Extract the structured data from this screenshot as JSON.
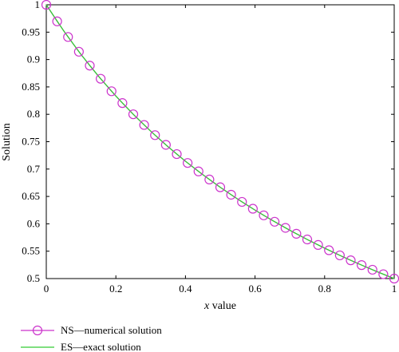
{
  "chart_data": {
    "type": "line",
    "title": "",
    "xlabel_var": "x",
    "xlabel_rest": " value",
    "ylabel": "Solution",
    "xlim": [
      0,
      1
    ],
    "ylim": [
      0.5,
      1
    ],
    "x_ticks": [
      0,
      0.2,
      0.4,
      0.6,
      0.8,
      1
    ],
    "x_tick_labels": [
      "0",
      "0.2",
      "0.4",
      "0.6",
      "0.8",
      "1"
    ],
    "y_ticks": [
      0.5,
      0.55,
      0.6,
      0.65,
      0.7,
      0.75,
      0.8,
      0.85,
      0.9,
      0.95,
      1
    ],
    "y_tick_labels": [
      "0.5",
      "0.55",
      "0.6",
      "0.65",
      "0.7",
      "0.75",
      "0.8",
      "0.85",
      "0.9",
      "0.95",
      "1"
    ],
    "grid": false,
    "legend_position": "bottom-left, below plot",
    "series": [
      {
        "name": "NS—numerical solution",
        "color": "#cc33cc",
        "style": "circle-markers",
        "x": [
          0,
          0.03125,
          0.0625,
          0.09375,
          0.125,
          0.15625,
          0.1875,
          0.21875,
          0.25,
          0.28125,
          0.3125,
          0.34375,
          0.375,
          0.40625,
          0.4375,
          0.46875,
          0.5,
          0.53125,
          0.5625,
          0.59375,
          0.625,
          0.65625,
          0.6875,
          0.71875,
          0.75,
          0.78125,
          0.8125,
          0.84375,
          0.875,
          0.90625,
          0.9375,
          0.96875,
          1
        ],
        "y": [
          1.0,
          0.9697,
          0.9412,
          0.9143,
          0.8889,
          0.8649,
          0.8421,
          0.8205,
          0.8,
          0.7805,
          0.7619,
          0.7442,
          0.7273,
          0.7111,
          0.6957,
          0.6809,
          0.6667,
          0.6531,
          0.64,
          0.6275,
          0.6154,
          0.6038,
          0.5926,
          0.5818,
          0.5714,
          0.5614,
          0.5517,
          0.5424,
          0.5333,
          0.5246,
          0.5161,
          0.5079,
          0.5
        ]
      },
      {
        "name": "ES—exact solution",
        "color": "#33cc33",
        "style": "line",
        "x": [
          0,
          0.05,
          0.1,
          0.15,
          0.2,
          0.25,
          0.3,
          0.35,
          0.4,
          0.45,
          0.5,
          0.55,
          0.6,
          0.65,
          0.7,
          0.75,
          0.8,
          0.85,
          0.9,
          0.95,
          1
        ],
        "y": [
          1.0,
          0.9524,
          0.9091,
          0.8696,
          0.8333,
          0.8,
          0.7692,
          0.7407,
          0.7143,
          0.6897,
          0.6667,
          0.6452,
          0.625,
          0.6061,
          0.5882,
          0.5714,
          0.5556,
          0.5405,
          0.5263,
          0.5128,
          0.5
        ]
      }
    ]
  }
}
